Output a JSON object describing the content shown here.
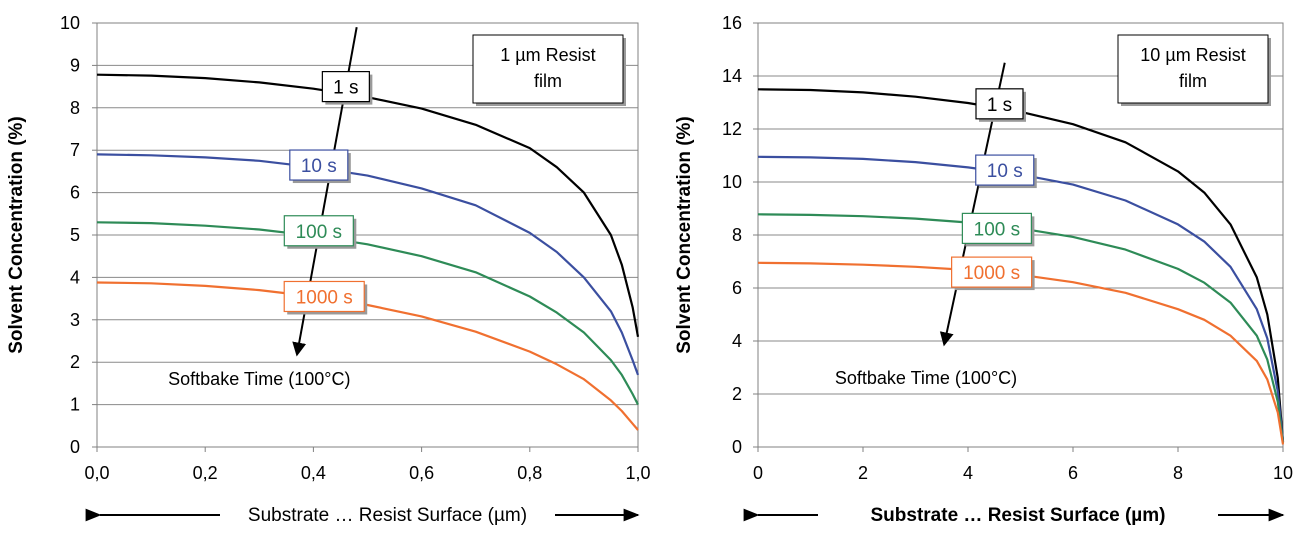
{
  "chart_data": [
    {
      "type": "line",
      "ylabel": "Solvent Concentration (%)",
      "xlabel": "Substrate … Resist Surface (µm)",
      "xlabel_bold": false,
      "xlim": [
        0,
        1.0
      ],
      "ylim": [
        0,
        10
      ],
      "xticks": [
        "0,0",
        "0,2",
        "0,4",
        "0,6",
        "0,8",
        "1,0"
      ],
      "xtick_values": [
        0,
        0.2,
        0.4,
        0.6,
        0.8,
        1.0
      ],
      "yticks": [
        "0",
        "1",
        "2",
        "3",
        "4",
        "5",
        "6",
        "7",
        "8",
        "9",
        "10"
      ],
      "ytick_values": [
        0,
        1,
        2,
        3,
        4,
        5,
        6,
        7,
        8,
        9,
        10
      ],
      "grid": "horizontal",
      "film_box": [
        "1 µm Resist",
        "film"
      ],
      "arrow_annotation": "Softbake Time (100°C)",
      "series": [
        {
          "name": "1 s",
          "color": "#000000",
          "x": [
            0,
            0.1,
            0.2,
            0.3,
            0.4,
            0.5,
            0.6,
            0.7,
            0.8,
            0.85,
            0.9,
            0.95,
            0.97,
            0.99,
            1.0
          ],
          "y": [
            8.78,
            8.76,
            8.7,
            8.6,
            8.45,
            8.25,
            7.98,
            7.6,
            7.05,
            6.6,
            6.0,
            5.0,
            4.3,
            3.3,
            2.6
          ]
        },
        {
          "name": "10 s",
          "color": "#3B4FA0",
          "x": [
            0,
            0.1,
            0.2,
            0.3,
            0.4,
            0.5,
            0.6,
            0.7,
            0.8,
            0.85,
            0.9,
            0.95,
            0.97,
            0.99,
            1.0
          ],
          "y": [
            6.9,
            6.88,
            6.83,
            6.75,
            6.6,
            6.4,
            6.1,
            5.7,
            5.05,
            4.6,
            4.0,
            3.2,
            2.7,
            2.05,
            1.7
          ]
        },
        {
          "name": "100 s",
          "color": "#2E8B57",
          "x": [
            0,
            0.1,
            0.2,
            0.3,
            0.4,
            0.5,
            0.6,
            0.7,
            0.8,
            0.85,
            0.9,
            0.95,
            0.97,
            0.99,
            1.0
          ],
          "y": [
            5.3,
            5.28,
            5.22,
            5.13,
            4.98,
            4.78,
            4.5,
            4.12,
            3.55,
            3.17,
            2.7,
            2.05,
            1.7,
            1.25,
            1.0
          ]
        },
        {
          "name": "1000 s",
          "color": "#F07030",
          "x": [
            0,
            0.1,
            0.2,
            0.3,
            0.4,
            0.5,
            0.6,
            0.7,
            0.8,
            0.85,
            0.9,
            0.95,
            0.97,
            0.99,
            1.0
          ],
          "y": [
            3.88,
            3.86,
            3.8,
            3.7,
            3.55,
            3.35,
            3.08,
            2.72,
            2.25,
            1.95,
            1.6,
            1.1,
            0.85,
            0.55,
            0.4
          ]
        }
      ],
      "labels": [
        {
          "name": "1 s",
          "color": "#000000",
          "at": [
            0.46,
            8.5
          ]
        },
        {
          "name": "10 s",
          "color": "#3B4FA0",
          "at": [
            0.41,
            6.65
          ]
        },
        {
          "name": "100 s",
          "color": "#2E8B57",
          "at": [
            0.41,
            5.1
          ]
        },
        {
          "name": "1000 s",
          "color": "#F07030",
          "at": [
            0.42,
            3.55
          ]
        }
      ],
      "arrow": {
        "from": [
          0.48,
          9.9
        ],
        "to": [
          0.37,
          2.2
        ]
      },
      "annotation_at": [
        0.3,
        1.6
      ]
    },
    {
      "type": "line",
      "ylabel": "Solvent Concentration (%)",
      "xlabel": "Substrate … Resist Surface (µm)",
      "xlabel_bold": true,
      "xlim": [
        0,
        10
      ],
      "ylim": [
        0,
        16
      ],
      "xticks": [
        "0",
        "2",
        "4",
        "6",
        "8",
        "10"
      ],
      "xtick_values": [
        0,
        2,
        4,
        6,
        8,
        10
      ],
      "yticks": [
        "0",
        "2",
        "4",
        "6",
        "8",
        "10",
        "12",
        "14",
        "16"
      ],
      "ytick_values": [
        0,
        2,
        4,
        6,
        8,
        10,
        12,
        14,
        16
      ],
      "grid": "horizontal",
      "film_box": [
        "10 µm Resist",
        "film"
      ],
      "arrow_annotation": "Softbake Time (100°C)",
      "series": [
        {
          "name": "1 s",
          "color": "#000000",
          "x": [
            0,
            1,
            2,
            3,
            4,
            5,
            6,
            7,
            8,
            8.5,
            9,
            9.5,
            9.7,
            9.9,
            10
          ],
          "y": [
            13.5,
            13.47,
            13.38,
            13.22,
            12.98,
            12.65,
            12.18,
            11.5,
            10.4,
            9.6,
            8.4,
            6.4,
            5.0,
            2.6,
            0.2
          ]
        },
        {
          "name": "10 s",
          "color": "#3B4FA0",
          "x": [
            0,
            1,
            2,
            3,
            4,
            5,
            6,
            7,
            8,
            8.5,
            9,
            9.5,
            9.7,
            9.9,
            10
          ],
          "y": [
            10.95,
            10.93,
            10.87,
            10.75,
            10.55,
            10.28,
            9.9,
            9.3,
            8.4,
            7.75,
            6.8,
            5.2,
            4.1,
            2.1,
            0.2
          ]
        },
        {
          "name": "100 s",
          "color": "#2E8B57",
          "x": [
            0,
            1,
            2,
            3,
            4,
            5,
            6,
            7,
            8,
            8.5,
            9,
            9.5,
            9.7,
            9.9,
            10
          ],
          "y": [
            8.78,
            8.76,
            8.71,
            8.62,
            8.47,
            8.25,
            7.93,
            7.45,
            6.72,
            6.2,
            5.45,
            4.2,
            3.3,
            1.7,
            0.15
          ]
        },
        {
          "name": "1000 s",
          "color": "#F07030",
          "x": [
            0,
            1,
            2,
            3,
            4,
            5,
            6,
            7,
            8,
            8.5,
            9,
            9.5,
            9.7,
            9.9,
            10
          ],
          "y": [
            6.95,
            6.93,
            6.88,
            6.8,
            6.68,
            6.5,
            6.22,
            5.82,
            5.2,
            4.8,
            4.2,
            3.25,
            2.55,
            1.3,
            0.1
          ]
        }
      ],
      "labels": [
        {
          "name": "1 s",
          "color": "#000000",
          "at": [
            4.6,
            12.95
          ]
        },
        {
          "name": "10 s",
          "color": "#3B4FA0",
          "at": [
            4.7,
            10.45
          ]
        },
        {
          "name": "100 s",
          "color": "#2E8B57",
          "at": [
            4.55,
            8.25
          ]
        },
        {
          "name": "1000 s",
          "color": "#F07030",
          "at": [
            4.45,
            6.6
          ]
        }
      ],
      "arrow": {
        "from": [
          4.7,
          14.5
        ],
        "to": [
          3.55,
          3.9
        ]
      },
      "annotation_at": [
        3.2,
        2.6
      ]
    }
  ]
}
